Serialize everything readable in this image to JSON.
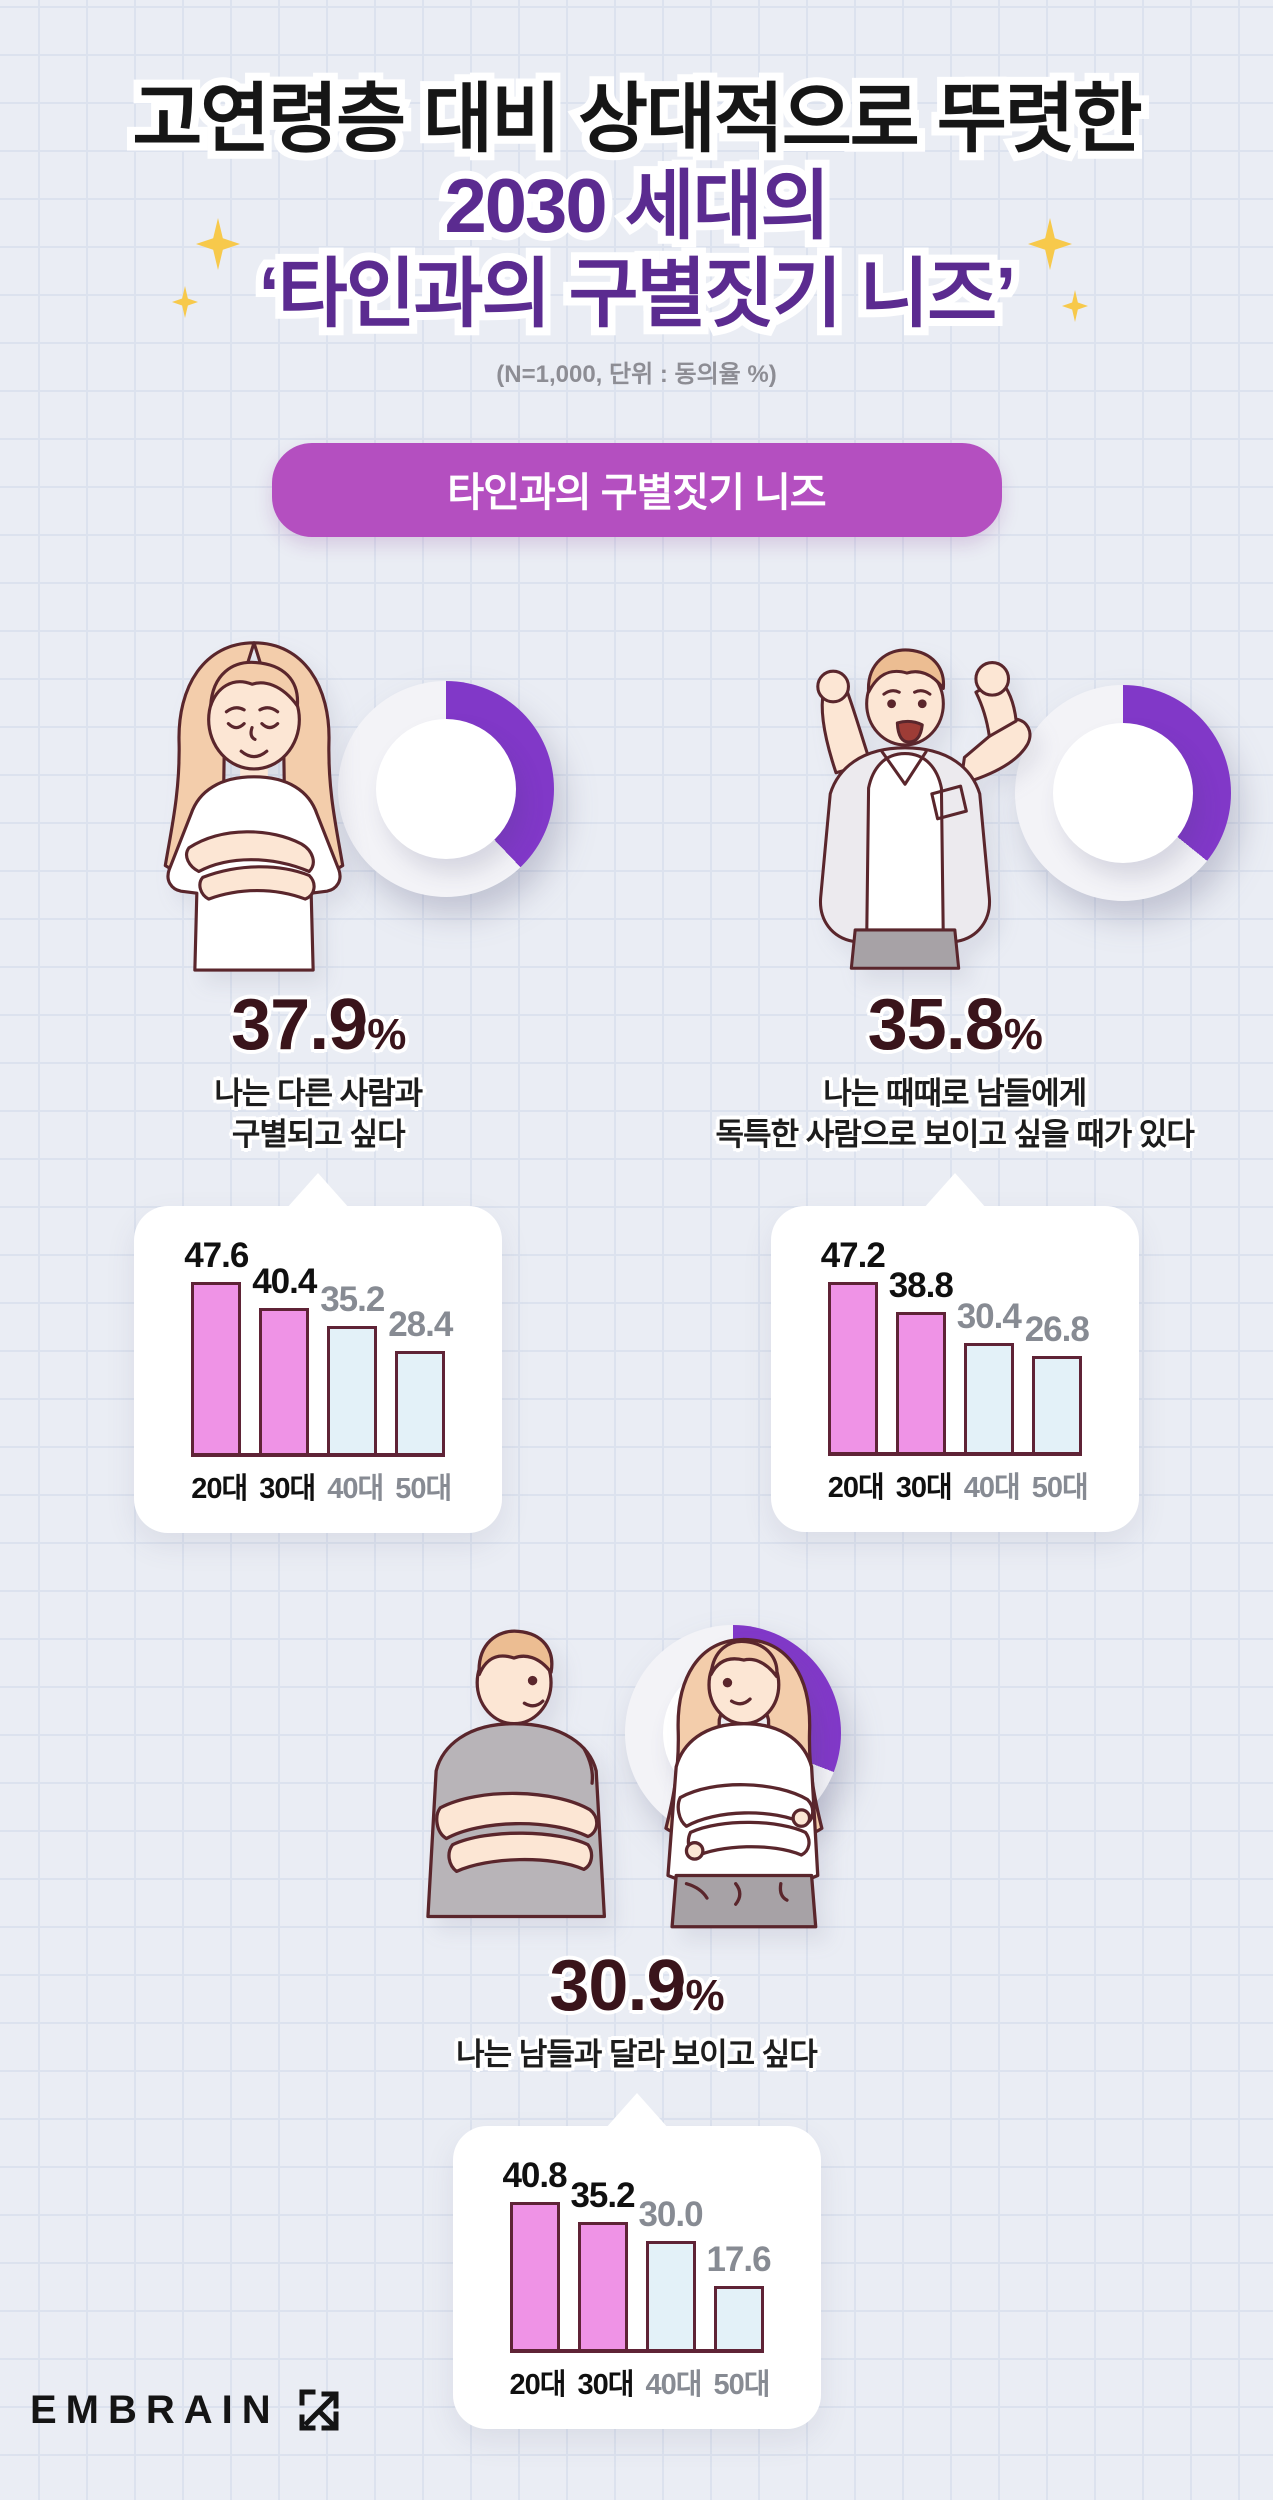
{
  "header": {
    "title_line1": "고연령층 대비 상대적으로 뚜렷한",
    "title_line2": "2030 세대의",
    "title_line3": "‘타인과의 구별짓기 니즈’",
    "subtitle": "(N=1,000, 단위 : 동의율 %)"
  },
  "badge": {
    "label": "타인과의 구별짓기 니즈"
  },
  "sections": [
    {
      "percent": "37.9",
      "unit": "%",
      "caption_line1": "나는 다른 사람과",
      "caption_line2": "구별되고 싶다"
    },
    {
      "percent": "35.8",
      "unit": "%",
      "caption_line1": "나는 때때로 남들에게",
      "caption_line2": "독특한 사람으로 보이고 싶을 때가 있다"
    },
    {
      "percent": "30.9",
      "unit": "%",
      "caption_line1": "나는 남들과 달라 보이고 싶다",
      "caption_line2": ""
    }
  ],
  "chart_data": [
    {
      "type": "donut+bar",
      "statement": "나는 다른 사람과 구별되고 싶다",
      "overall_agree_percent": 37.9,
      "categories": [
        "20대",
        "30대",
        "40대",
        "50대"
      ],
      "values": [
        47.6,
        40.4,
        35.2,
        28.4
      ],
      "value_labels": [
        "47.6",
        "40.4",
        "35.2",
        "28.4"
      ],
      "unit": "동의율 %",
      "n": 1000,
      "highlighted_categories": [
        "20대",
        "30대"
      ]
    },
    {
      "type": "donut+bar",
      "statement": "나는 때때로 남들에게 독특한 사람으로 보이고 싶을 때가 있다",
      "overall_agree_percent": 35.8,
      "categories": [
        "20대",
        "30대",
        "40대",
        "50대"
      ],
      "values": [
        47.2,
        38.8,
        30.4,
        26.8
      ],
      "value_labels": [
        "47.2",
        "38.8",
        "30.4",
        "26.8"
      ],
      "unit": "동의율 %",
      "n": 1000,
      "highlighted_categories": [
        "20대",
        "30대"
      ]
    },
    {
      "type": "donut+bar",
      "statement": "나는 남들과 달라 보이고 싶다",
      "overall_agree_percent": 30.9,
      "categories": [
        "20대",
        "30대",
        "40대",
        "50대"
      ],
      "values": [
        40.8,
        35.2,
        30.0,
        17.6
      ],
      "value_labels": [
        "40.8",
        "35.2",
        "30.0",
        "17.6"
      ],
      "unit": "동의율 %",
      "n": 1000,
      "highlighted_categories": [
        "20대",
        "30대"
      ]
    }
  ],
  "footer": {
    "brand": "EMBRAIN"
  },
  "colors": {
    "background": "#eaedf4",
    "grid_line": "#dce2ee",
    "title_black": "#161616",
    "title_purple": "#5b2b90",
    "sparkle_gold": "#f7c94b",
    "pill_purple": "#b44fc0",
    "donut_purple": "#8138c8",
    "donut_rest": "#f3f3f7",
    "big_number": "#3a141b",
    "bar_pink": "#ef93e6",
    "bar_blue": "#e3f1f8",
    "bar_border": "#5f2336",
    "muted_gray": "#878b93"
  }
}
